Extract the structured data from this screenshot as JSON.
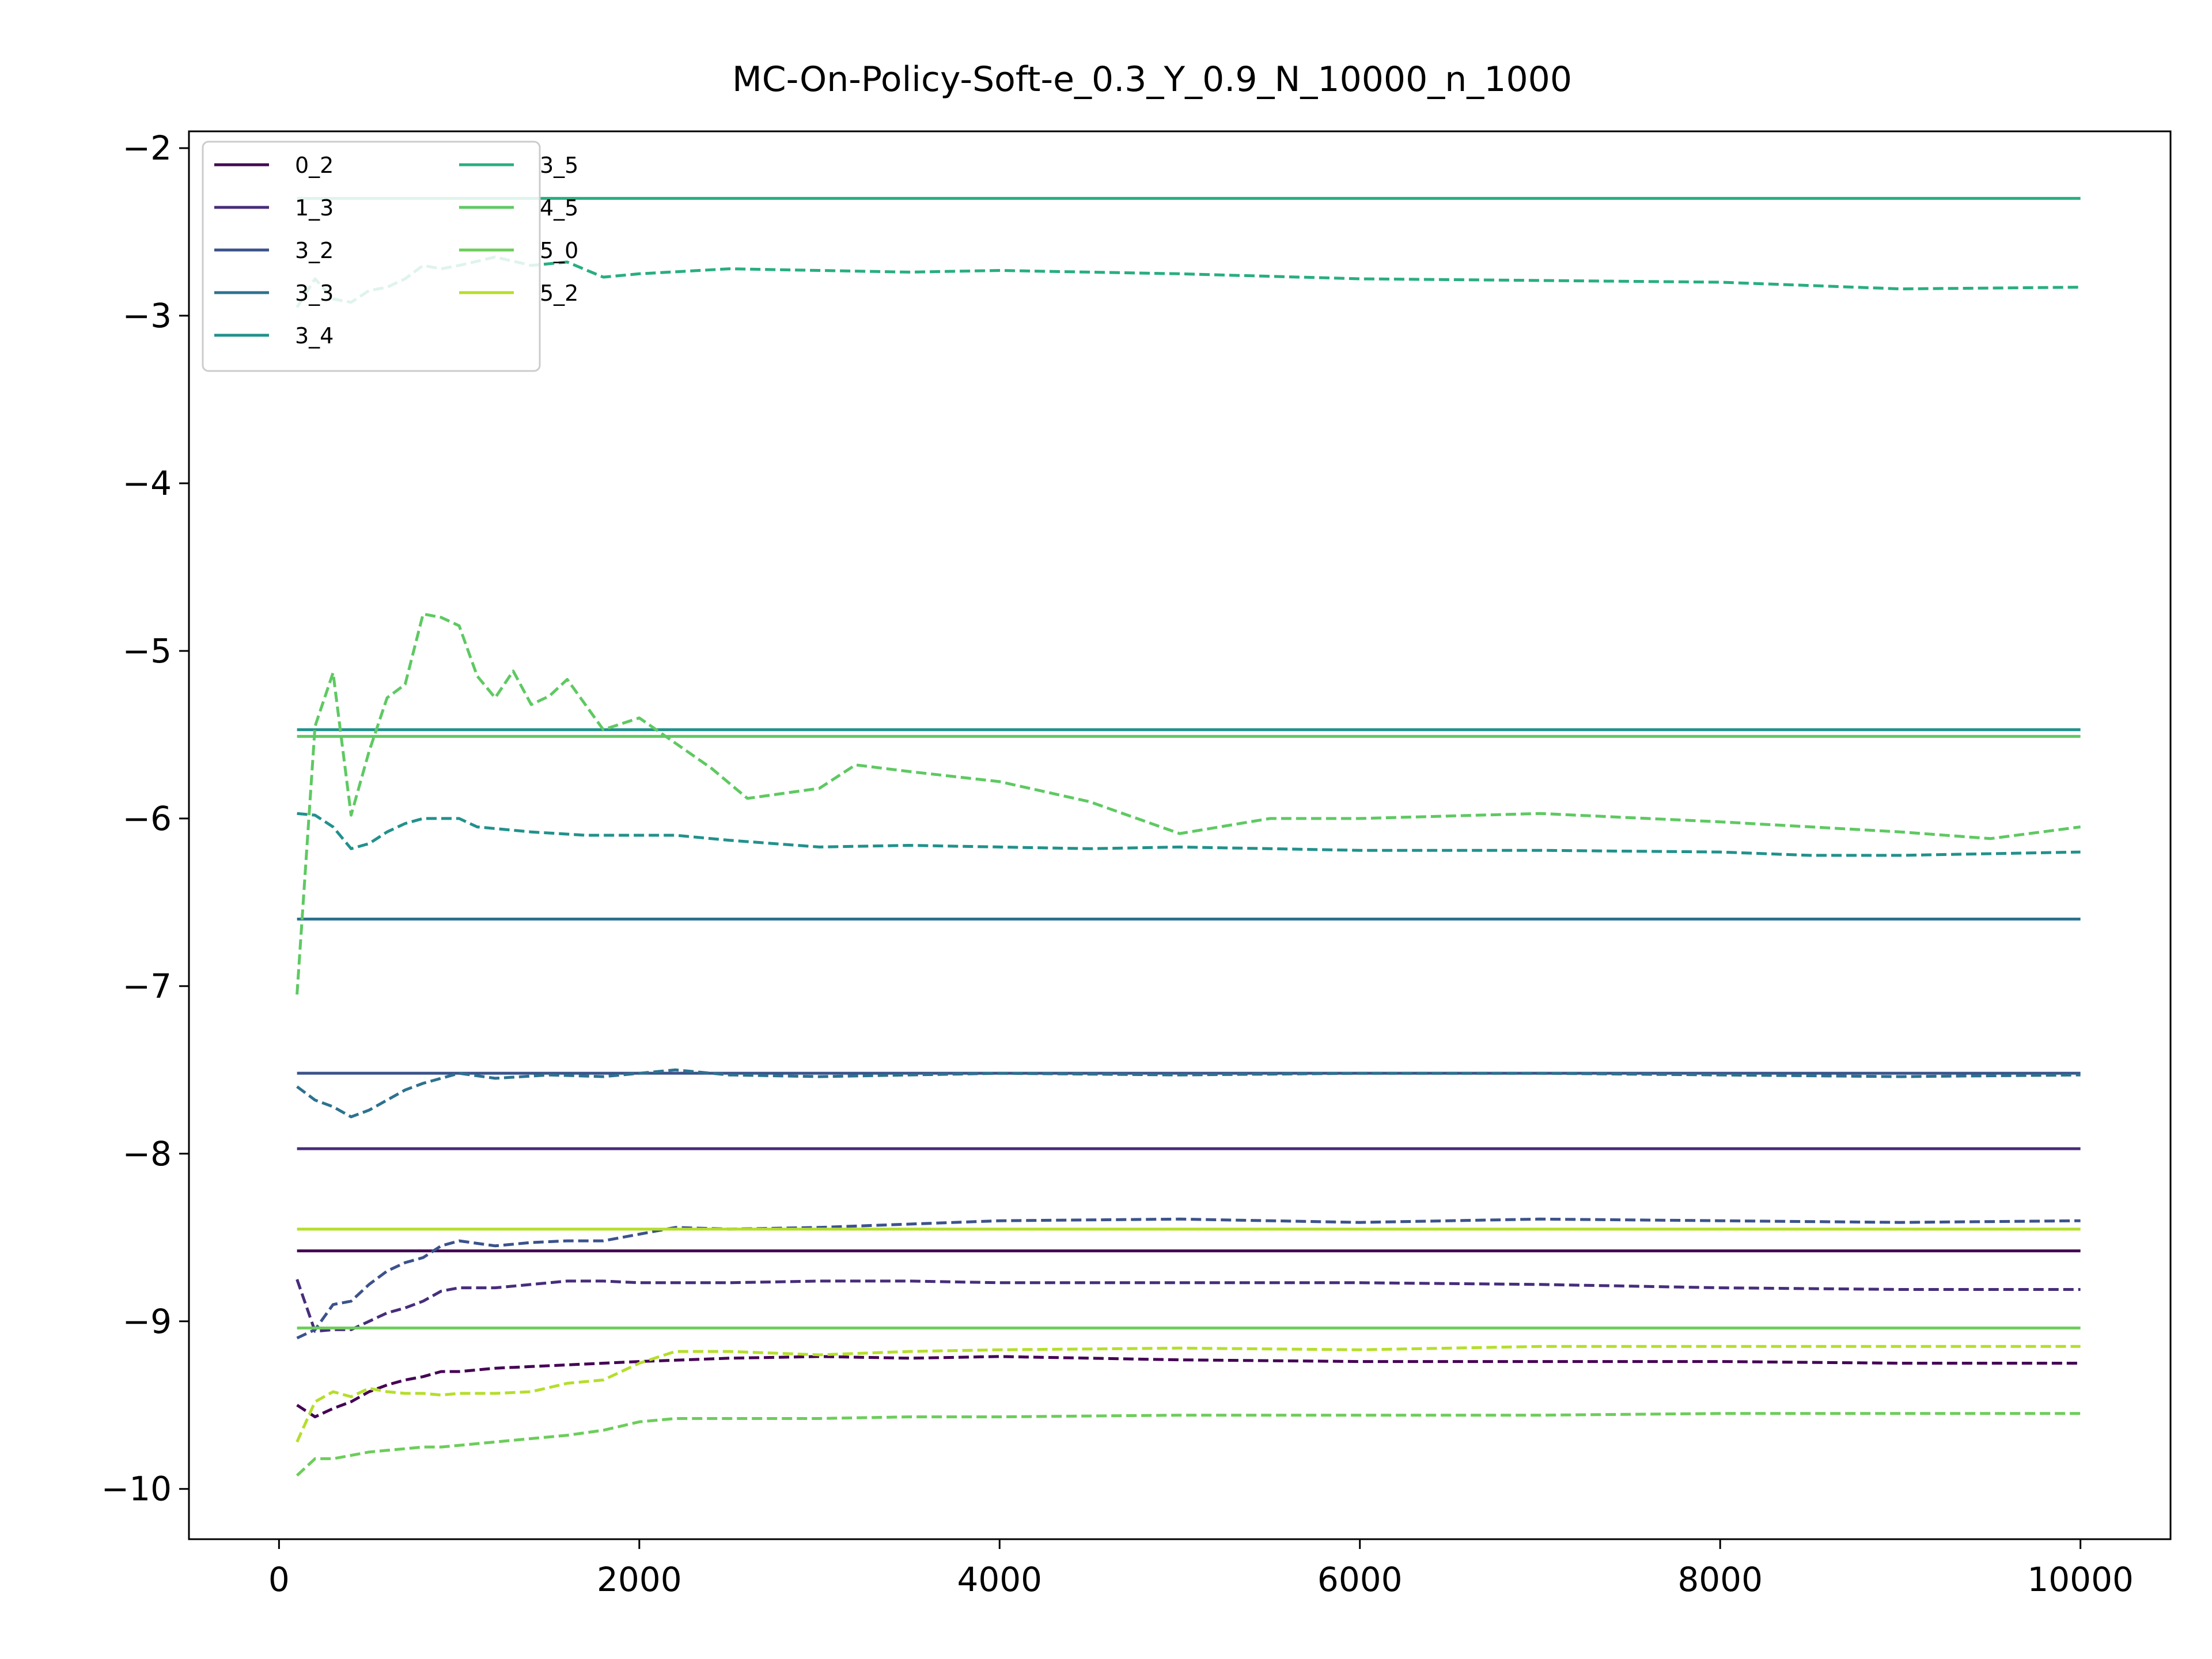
{
  "chart_data": {
    "type": "line",
    "title": "MC-On-Policy-Soft-e_0.3_Y_0.9_N_10000_n_1000",
    "xlabel": "",
    "ylabel": "",
    "xlim": [
      -500,
      10500
    ],
    "ylim": [
      -10.3,
      -1.9
    ],
    "xticks": [
      0,
      2000,
      4000,
      6000,
      8000,
      10000
    ],
    "xtick_labels": [
      "0",
      "2000",
      "4000",
      "6000",
      "8000",
      "10000"
    ],
    "yticks": [
      -2,
      -3,
      -4,
      -5,
      -6,
      -7,
      -8,
      -9,
      -10
    ],
    "ytick_labels": [
      "−2",
      "−3",
      "−4",
      "−5",
      "−6",
      "−7",
      "−8",
      "−9",
      "−10"
    ],
    "grid": false,
    "legend": {
      "placement": "top-left",
      "columns": 2
    },
    "series": [
      {
        "name": "0_2",
        "color": "#440154",
        "ref": -8.58,
        "x": [
          100,
          200,
          300,
          400,
          500,
          600,
          700,
          800,
          900,
          1000,
          1200,
          1400,
          1600,
          1800,
          2000,
          2500,
          3000,
          3500,
          4000,
          5000,
          6000,
          7000,
          8000,
          9000,
          10000
        ],
        "y": [
          -9.5,
          -9.57,
          -9.52,
          -9.48,
          -9.42,
          -9.38,
          -9.35,
          -9.33,
          -9.3,
          -9.3,
          -9.28,
          -9.27,
          -9.26,
          -9.25,
          -9.24,
          -9.22,
          -9.21,
          -9.22,
          -9.21,
          -9.23,
          -9.24,
          -9.24,
          -9.24,
          -9.25,
          -9.25
        ]
      },
      {
        "name": "1_3",
        "color": "#472d7b",
        "ref": -7.97,
        "x": [
          100,
          200,
          300,
          400,
          500,
          600,
          700,
          800,
          900,
          1000,
          1200,
          1400,
          1600,
          1800,
          2000,
          2500,
          3000,
          3500,
          4000,
          5000,
          6000,
          7000,
          8000,
          9000,
          10000
        ],
        "y": [
          -8.75,
          -9.06,
          -9.05,
          -9.05,
          -9.0,
          -8.95,
          -8.92,
          -8.88,
          -8.82,
          -8.8,
          -8.8,
          -8.78,
          -8.76,
          -8.76,
          -8.77,
          -8.77,
          -8.76,
          -8.76,
          -8.77,
          -8.77,
          -8.77,
          -8.78,
          -8.8,
          -8.81,
          -8.81
        ]
      },
      {
        "name": "3_2",
        "color": "#3b528b",
        "ref": -7.52,
        "x": [
          100,
          200,
          300,
          400,
          500,
          600,
          700,
          800,
          900,
          1000,
          1200,
          1400,
          1600,
          1800,
          2000,
          2200,
          2500,
          3000,
          3500,
          4000,
          5000,
          6000,
          7000,
          8000,
          9000,
          10000
        ],
        "y": [
          -9.1,
          -9.05,
          -8.9,
          -8.88,
          -8.78,
          -8.7,
          -8.65,
          -8.62,
          -8.55,
          -8.52,
          -8.55,
          -8.53,
          -8.52,
          -8.52,
          -8.48,
          -8.44,
          -8.45,
          -8.44,
          -8.42,
          -8.4,
          -8.39,
          -8.41,
          -8.39,
          -8.4,
          -8.41,
          -8.4
        ]
      },
      {
        "name": "3_3",
        "color": "#2c728e",
        "ref": -6.6,
        "x": [
          100,
          200,
          300,
          400,
          500,
          600,
          700,
          800,
          900,
          1000,
          1200,
          1500,
          1800,
          2000,
          2200,
          2500,
          3000,
          3500,
          4000,
          5000,
          6000,
          7000,
          8000,
          9000,
          10000
        ],
        "y": [
          -7.6,
          -7.68,
          -7.72,
          -7.78,
          -7.74,
          -7.68,
          -7.62,
          -7.58,
          -7.55,
          -7.52,
          -7.55,
          -7.53,
          -7.54,
          -7.52,
          -7.5,
          -7.53,
          -7.54,
          -7.53,
          -7.52,
          -7.53,
          -7.52,
          -7.52,
          -7.53,
          -7.54,
          -7.53
        ]
      },
      {
        "name": "3_4",
        "color": "#21918c",
        "ref": -5.47,
        "x": [
          100,
          200,
          300,
          400,
          500,
          600,
          700,
          800,
          900,
          1000,
          1100,
          1400,
          1700,
          2000,
          2200,
          2500,
          3000,
          3500,
          4000,
          4500,
          5000,
          6000,
          7000,
          8000,
          8500,
          9000,
          10000
        ],
        "y": [
          -5.97,
          -5.98,
          -6.05,
          -6.18,
          -6.15,
          -6.08,
          -6.03,
          -6.0,
          -6.0,
          -6.0,
          -6.05,
          -6.08,
          -6.1,
          -6.1,
          -6.1,
          -6.13,
          -6.17,
          -6.16,
          -6.17,
          -6.18,
          -6.17,
          -6.19,
          -6.19,
          -6.2,
          -6.22,
          -6.22,
          -6.2
        ]
      },
      {
        "name": "3_5",
        "color": "#28ae80",
        "ref": -2.3,
        "x": [
          100,
          200,
          300,
          400,
          500,
          600,
          700,
          800,
          900,
          1000,
          1200,
          1400,
          1600,
          1800,
          2000,
          2500,
          3000,
          3500,
          4000,
          5000,
          6000,
          7000,
          8000,
          9000,
          10000
        ],
        "y": [
          -2.95,
          -2.78,
          -2.9,
          -2.92,
          -2.85,
          -2.83,
          -2.78,
          -2.7,
          -2.72,
          -2.7,
          -2.65,
          -2.7,
          -2.68,
          -2.77,
          -2.75,
          -2.72,
          -2.73,
          -2.74,
          -2.73,
          -2.75,
          -2.78,
          -2.79,
          -2.8,
          -2.84,
          -2.83
        ]
      },
      {
        "name": "4_5",
        "color": "#5ec962",
        "ref": -5.51,
        "x": [
          100,
          200,
          300,
          400,
          500,
          600,
          700,
          800,
          900,
          1000,
          1100,
          1200,
          1300,
          1400,
          1500,
          1600,
          1800,
          2000,
          2200,
          2400,
          2600,
          3000,
          3200,
          3500,
          4000,
          4500,
          5000,
          5500,
          6000,
          7000,
          8000,
          9000,
          9500,
          10000
        ],
        "y": [
          -7.05,
          -5.45,
          -5.13,
          -5.98,
          -5.6,
          -5.28,
          -5.2,
          -4.78,
          -4.8,
          -4.85,
          -5.15,
          -5.28,
          -5.12,
          -5.32,
          -5.27,
          -5.17,
          -5.47,
          -5.4,
          -5.55,
          -5.7,
          -5.88,
          -5.82,
          -5.68,
          -5.72,
          -5.78,
          -5.9,
          -6.09,
          -6.0,
          -6.0,
          -5.97,
          -6.02,
          -6.08,
          -6.12,
          -6.05
        ]
      },
      {
        "name": "5_0",
        "color": "#6ccd5a",
        "ref": -9.04,
        "x": [
          100,
          200,
          300,
          400,
          500,
          600,
          700,
          800,
          900,
          1000,
          1200,
          1400,
          1600,
          1800,
          2000,
          2200,
          2500,
          3000,
          3500,
          4000,
          5000,
          6000,
          7000,
          8000,
          9000,
          10000
        ],
        "y": [
          -9.92,
          -9.82,
          -9.82,
          -9.8,
          -9.78,
          -9.77,
          -9.76,
          -9.75,
          -9.75,
          -9.74,
          -9.72,
          -9.7,
          -9.68,
          -9.65,
          -9.6,
          -9.58,
          -9.58,
          -9.58,
          -9.57,
          -9.57,
          -9.56,
          -9.56,
          -9.56,
          -9.55,
          -9.55,
          -9.55
        ]
      },
      {
        "name": "5_2",
        "color": "#b5de2b",
        "ref": -8.45,
        "x": [
          100,
          200,
          300,
          400,
          500,
          600,
          700,
          800,
          900,
          1000,
          1200,
          1400,
          1600,
          1800,
          2000,
          2200,
          2500,
          3000,
          3500,
          4000,
          5000,
          6000,
          7000,
          8000,
          9000,
          10000
        ],
        "y": [
          -9.72,
          -9.48,
          -9.42,
          -9.45,
          -9.4,
          -9.42,
          -9.43,
          -9.43,
          -9.44,
          -9.43,
          -9.43,
          -9.42,
          -9.37,
          -9.35,
          -9.25,
          -9.18,
          -9.18,
          -9.2,
          -9.18,
          -9.17,
          -9.16,
          -9.17,
          -9.15,
          -9.15,
          -9.15,
          -9.15
        ]
      }
    ]
  }
}
